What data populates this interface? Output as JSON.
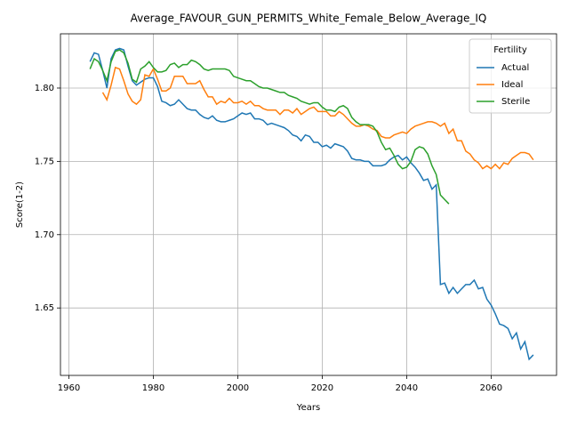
{
  "chart_data": {
    "type": "line",
    "title": "Average_FAVOUR_GUN_PERMITS_White_Female_Below_Average_IQ",
    "x_label": "Years",
    "y_label": "Score(1-2)",
    "x": [
      1965,
      1966,
      1967,
      1968,
      1969,
      1970,
      1971,
      1972,
      1973,
      1974,
      1975,
      1976,
      1977,
      1978,
      1979,
      1980,
      1981,
      1982,
      1983,
      1984,
      1985,
      1986,
      1987,
      1988,
      1989,
      1990,
      1991,
      1992,
      1993,
      1994,
      1995,
      1996,
      1997,
      1998,
      1999,
      2000,
      2001,
      2002,
      2003,
      2004,
      2005,
      2006,
      2007,
      2008,
      2009,
      2010,
      2011,
      2012,
      2013,
      2014,
      2015,
      2016,
      2017,
      2018,
      2019,
      2020,
      2021,
      2022,
      2023,
      2024,
      2025,
      2026,
      2027,
      2028,
      2029,
      2030,
      2031,
      2032,
      2033,
      2034,
      2035,
      2036,
      2037,
      2038,
      2039,
      2040,
      2041,
      2042,
      2043,
      2044,
      2045,
      2046,
      2047,
      2048,
      2049,
      2050,
      2051,
      2052,
      2053,
      2054,
      2055,
      2056,
      2057,
      2058,
      2059,
      2060,
      2061,
      2062,
      2063,
      2064,
      2065,
      2066,
      2067,
      2068,
      2069,
      2070
    ],
    "series": [
      {
        "name": "Actual",
        "color": "#1f77b4",
        "values": [
          1.818,
          1.824,
          1.823,
          1.812,
          1.8,
          1.82,
          1.826,
          1.827,
          1.826,
          1.815,
          1.805,
          1.802,
          1.804,
          1.806,
          1.807,
          1.807,
          1.801,
          1.791,
          1.79,
          1.788,
          1.789,
          1.792,
          1.789,
          1.786,
          1.785,
          1.785,
          1.782,
          1.78,
          1.779,
          1.781,
          1.778,
          1.777,
          1.777,
          1.778,
          1.779,
          1.781,
          1.783,
          1.782,
          1.783,
          1.779,
          1.779,
          1.778,
          1.775,
          1.776,
          1.775,
          1.774,
          1.773,
          1.771,
          1.768,
          1.767,
          1.764,
          1.768,
          1.767,
          1.763,
          1.763,
          1.76,
          1.761,
          1.759,
          1.762,
          1.761,
          1.76,
          1.757,
          1.752,
          1.751,
          1.751,
          1.75,
          1.75,
          1.747,
          1.747,
          1.747,
          1.748,
          1.751,
          1.753,
          1.754,
          1.751,
          1.753,
          1.749,
          1.746,
          1.742,
          1.737,
          1.738,
          1.731,
          1.734,
          1.666,
          1.667,
          1.66,
          1.664,
          1.66,
          1.663,
          1.666,
          1.666,
          1.669,
          1.663,
          1.664,
          1.656,
          1.652,
          1.646,
          1.639,
          1.638,
          1.636,
          1.629,
          1.633,
          1.622,
          1.627,
          1.615,
          1.618
        ]
      },
      {
        "name": "Ideal",
        "color": "#ff7f0e",
        "values": [
          null,
          null,
          null,
          1.797,
          1.792,
          1.802,
          1.814,
          1.813,
          1.805,
          1.796,
          1.791,
          1.789,
          1.792,
          1.809,
          1.808,
          1.813,
          1.806,
          1.798,
          1.798,
          1.8,
          1.808,
          1.808,
          1.808,
          1.803,
          1.803,
          1.803,
          1.805,
          1.799,
          1.794,
          1.794,
          1.789,
          1.791,
          1.79,
          1.793,
          1.79,
          1.79,
          1.791,
          1.789,
          1.791,
          1.788,
          1.788,
          1.786,
          1.785,
          1.785,
          1.785,
          1.782,
          1.785,
          1.785,
          1.783,
          1.786,
          1.782,
          1.784,
          1.786,
          1.787,
          1.784,
          1.784,
          1.784,
          1.781,
          1.781,
          1.784,
          1.782,
          1.779,
          1.776,
          1.774,
          1.774,
          1.775,
          1.774,
          1.772,
          1.771,
          1.767,
          1.766,
          1.766,
          1.768,
          1.769,
          1.77,
          1.769,
          1.772,
          1.774,
          1.775,
          1.776,
          1.777,
          1.777,
          1.776,
          1.774,
          1.776,
          1.769,
          1.772,
          1.764,
          1.764,
          1.757,
          1.755,
          1.751,
          1.749,
          1.745,
          1.747,
          1.745,
          1.748,
          1.745,
          1.749,
          1.748,
          1.752,
          1.754,
          1.756,
          1.756,
          1.755,
          1.751
        ]
      },
      {
        "name": "Sterile",
        "color": "#2ca02c",
        "values": [
          1.813,
          1.82,
          1.818,
          1.812,
          1.805,
          1.818,
          1.825,
          1.826,
          1.824,
          1.817,
          1.806,
          1.804,
          1.813,
          1.815,
          1.818,
          1.814,
          1.811,
          1.811,
          1.812,
          1.816,
          1.817,
          1.814,
          1.816,
          1.816,
          1.819,
          1.818,
          1.816,
          1.813,
          1.812,
          1.813,
          1.813,
          1.813,
          1.813,
          1.812,
          1.808,
          1.807,
          1.806,
          1.805,
          1.805,
          1.803,
          1.801,
          1.8,
          1.8,
          1.799,
          1.798,
          1.797,
          1.797,
          1.795,
          1.794,
          1.793,
          1.791,
          1.79,
          1.789,
          1.79,
          1.79,
          1.787,
          1.785,
          1.785,
          1.784,
          1.787,
          1.788,
          1.786,
          1.78,
          1.777,
          1.775,
          1.775,
          1.775,
          1.774,
          1.77,
          1.763,
          1.758,
          1.759,
          1.754,
          1.748,
          1.745,
          1.746,
          1.75,
          1.758,
          1.76,
          1.759,
          1.755,
          1.747,
          1.741,
          1.727,
          1.724,
          1.721,
          null,
          null,
          null,
          null,
          null,
          null,
          null,
          null,
          null,
          null,
          null,
          null,
          null,
          null,
          null,
          null,
          null,
          null,
          null,
          null
        ]
      }
    ],
    "xlim": [
      1958,
      2075.5
    ],
    "xticks": [
      1960,
      1980,
      2000,
      2020,
      2040,
      2060
    ],
    "ylim": [
      1.604,
      1.837
    ],
    "yticks": [
      1.65,
      {
        "value": 1.7,
        "label": "1.70"
      },
      1.75,
      {
        "value": 1.8,
        "label": "1.80"
      }
    ],
    "grid": true,
    "legend": {
      "title": "Fertility",
      "loc": "upper right"
    }
  }
}
